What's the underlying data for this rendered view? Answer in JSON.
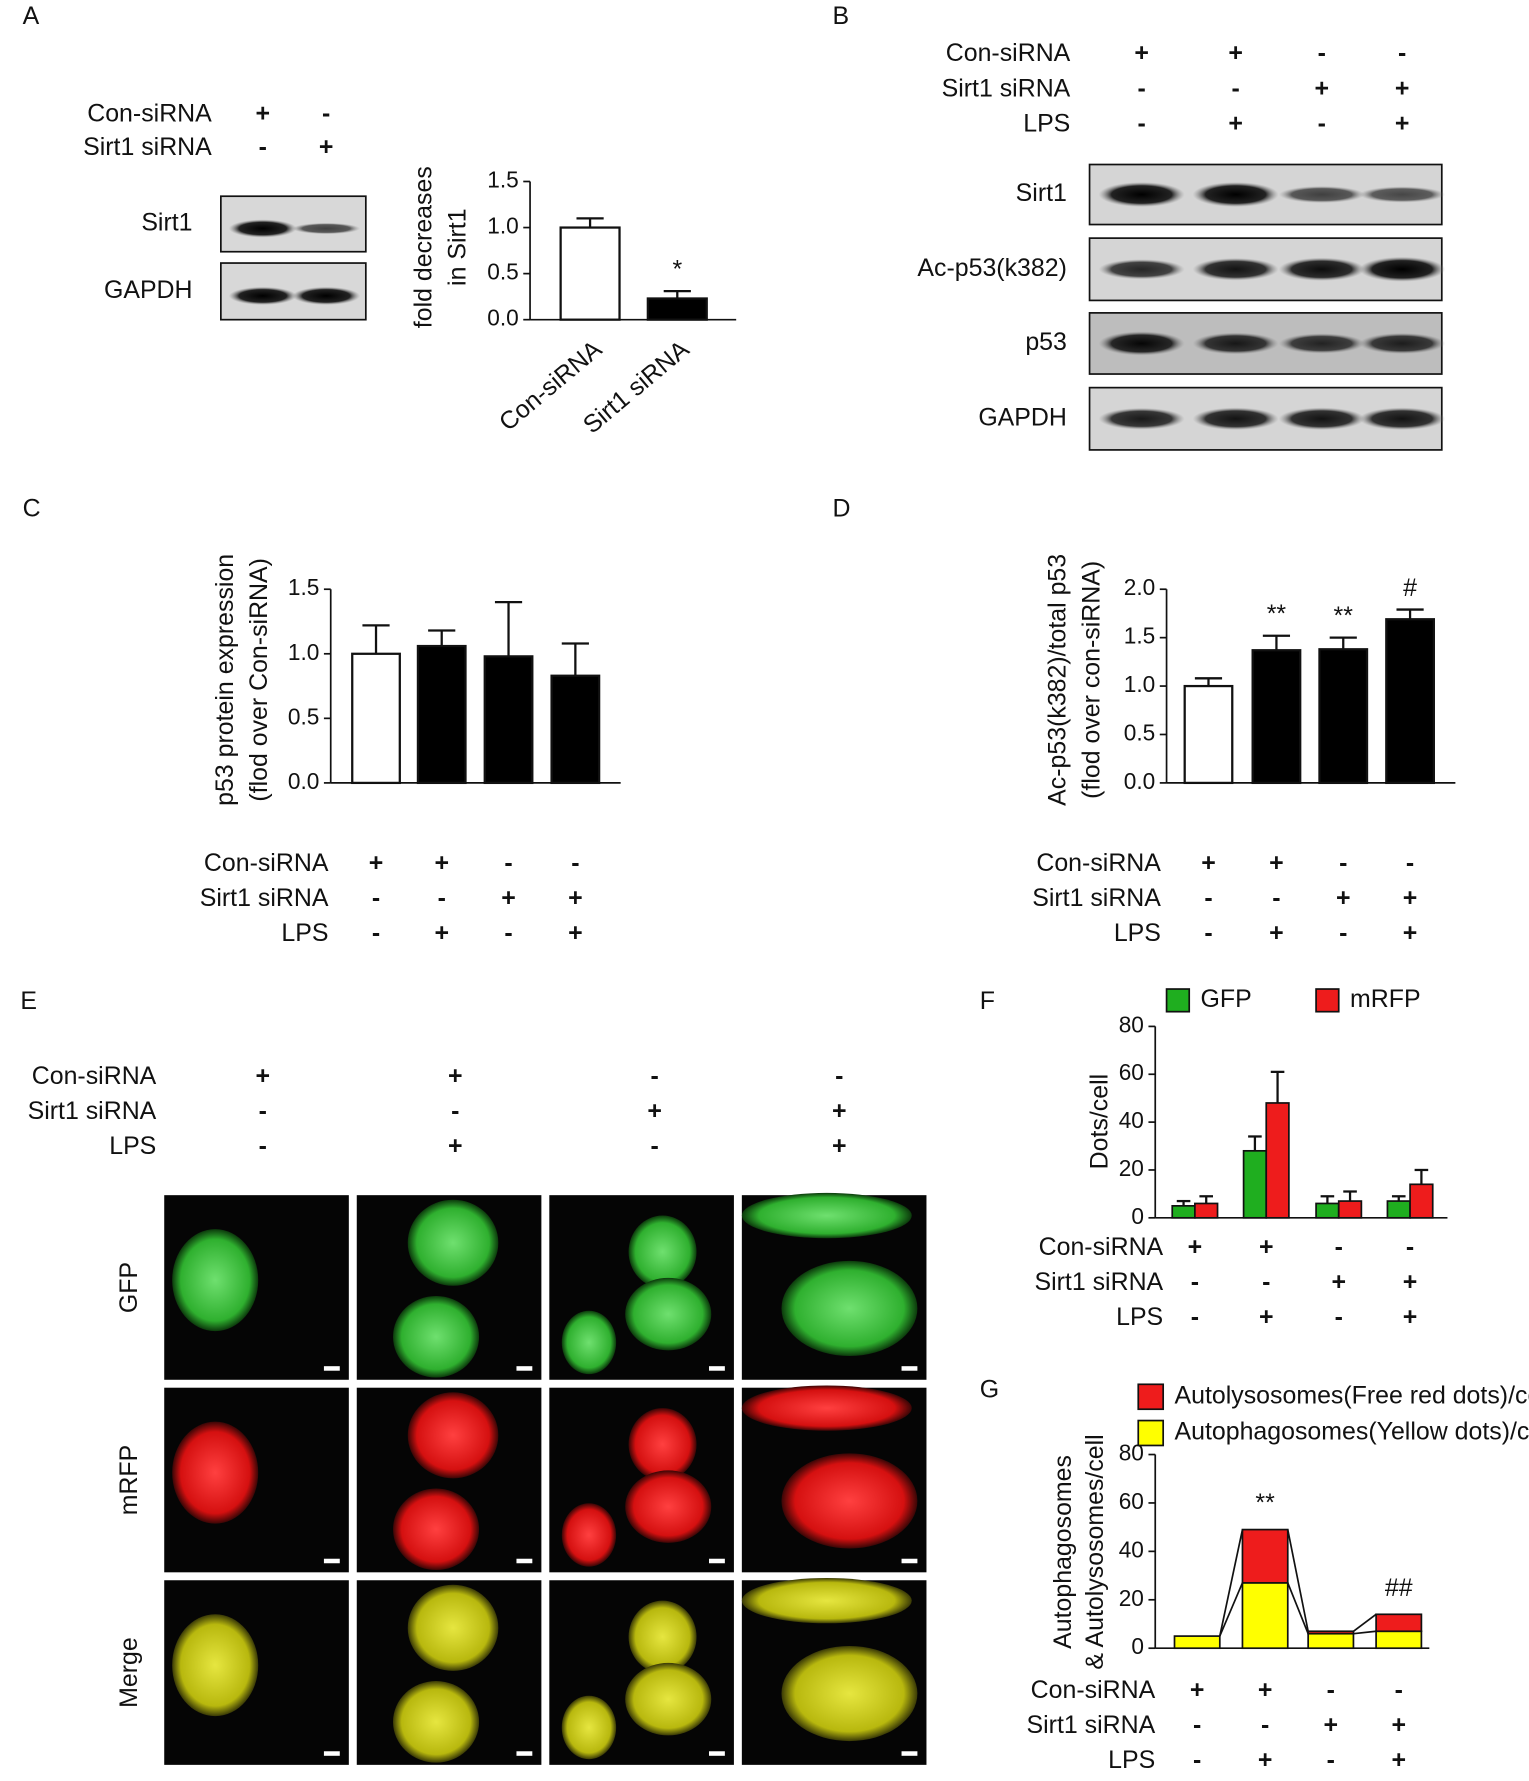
{
  "panel_labels": [
    "A",
    "B",
    "C",
    "D",
    "E",
    "F",
    "G"
  ],
  "blots": [
    {
      "conditions": [
        {
          "label": "Con-siRNA",
          "marks": [
            "+",
            "-"
          ]
        },
        {
          "label": "Sirt1 siRNA",
          "marks": [
            "-",
            "+"
          ]
        }
      ],
      "bands": [
        "Sirt1",
        "GAPDH"
      ]
    },
    {
      "conditions": [
        {
          "label": "Con-siRNA",
          "marks": [
            "+",
            "+",
            "-",
            "-"
          ]
        },
        {
          "label": "Sirt1 siRNA",
          "marks": [
            "-",
            "-",
            "+",
            "+"
          ]
        },
        {
          "label": "LPS",
          "marks": [
            "-",
            "+",
            "-",
            "+"
          ]
        }
      ],
      "bands": [
        "Sirt1",
        "Ac-p53(k382)",
        "p53",
        "GAPDH"
      ]
    }
  ],
  "micrographs": {
    "conditions": [
      {
        "label": "Con-siRNA",
        "marks": [
          "+",
          "+",
          "-",
          "-"
        ]
      },
      {
        "label": "Sirt1 siRNA",
        "marks": [
          "-",
          "-",
          "+",
          "+"
        ]
      },
      {
        "label": "LPS",
        "marks": [
          "-",
          "+",
          "-",
          "+"
        ]
      }
    ],
    "rows": [
      "GFP",
      "mRFP",
      "Merge"
    ]
  },
  "chart_data": [
    {
      "type": "bar",
      "y_label": [
        "fold decreases",
        "in Sirt1"
      ],
      "categories": [
        "Con-siRNA",
        "Sirt1 siRNA"
      ],
      "values": [
        1.0,
        0.23
      ],
      "errors": [
        0.1,
        0.08
      ],
      "colors": [
        "#ffffff",
        "#000000"
      ],
      "annotations": [
        null,
        "*"
      ],
      "ylim": [
        0,
        1.5
      ],
      "yticks": [
        {
          "value": 0,
          "label": "0.0"
        },
        {
          "value": 0.5,
          "label": "0.5"
        },
        {
          "value": 1,
          "label": "1.0"
        },
        {
          "value": 1.5,
          "label": "1.5"
        }
      ]
    },
    {
      "type": "bar",
      "y_label": [
        "p53 protein expression",
        "(flod over Con-siRNA)"
      ],
      "values": [
        1.0,
        1.06,
        0.98,
        0.83
      ],
      "errors": [
        0.22,
        0.12,
        0.42,
        0.25
      ],
      "colors": [
        "#ffffff",
        "#000000",
        "#000000",
        "#000000"
      ],
      "ylim": [
        0,
        1.5
      ],
      "yticks": [
        {
          "value": 0,
          "label": "0.0"
        },
        {
          "value": 0.5,
          "label": "0.5"
        },
        {
          "value": 1,
          "label": "1.0"
        },
        {
          "value": 1.5,
          "label": "1.5"
        }
      ],
      "conditions": [
        {
          "label": "Con-siRNA",
          "marks": [
            "+",
            "+",
            "-",
            "-"
          ]
        },
        {
          "label": "Sirt1 siRNA",
          "marks": [
            "-",
            "-",
            "+",
            "+"
          ]
        },
        {
          "label": "LPS",
          "marks": [
            "-",
            "+",
            "-",
            "+"
          ]
        }
      ]
    },
    {
      "type": "bar",
      "y_label": [
        "Ac-p53(k382)/total p53",
        "(flod over con-siRNA)"
      ],
      "values": [
        1.0,
        1.37,
        1.38,
        1.69
      ],
      "errors": [
        0.08,
        0.15,
        0.12,
        0.1
      ],
      "colors": [
        "#ffffff",
        "#000000",
        "#000000",
        "#000000"
      ],
      "annotations": [
        null,
        "**",
        "**",
        "#"
      ],
      "ylim": [
        0,
        2
      ],
      "yticks": [
        {
          "value": 0,
          "label": "0.0"
        },
        {
          "value": 0.5,
          "label": "0.5"
        },
        {
          "value": 1,
          "label": "1.0"
        },
        {
          "value": 1.5,
          "label": "1.5"
        },
        {
          "value": 2,
          "label": "2.0"
        }
      ],
      "conditions": [
        {
          "label": "Con-siRNA",
          "marks": [
            "+",
            "+",
            "-",
            "-"
          ]
        },
        {
          "label": "Sirt1 siRNA",
          "marks": [
            "-",
            "-",
            "+",
            "+"
          ]
        },
        {
          "label": "LPS",
          "marks": [
            "-",
            "+",
            "-",
            "+"
          ]
        }
      ]
    },
    {
      "type": "grouped_bar",
      "y_label": "Dots/cell",
      "series": [
        {
          "name": "GFP",
          "color": "#1fae1f",
          "values": [
            5,
            28,
            6,
            7
          ],
          "errors": [
            2,
            6,
            3,
            2
          ]
        },
        {
          "name": "mRFP",
          "color": "#ee1c1c",
          "values": [
            6,
            48,
            7,
            14
          ],
          "errors": [
            3,
            13,
            4,
            6
          ]
        }
      ],
      "ylim": [
        0,
        80
      ],
      "yticks": [
        0,
        20,
        40,
        60,
        80
      ],
      "conditions": [
        {
          "label": "Con-siRNA",
          "marks": [
            "+",
            "+",
            "-",
            "-"
          ]
        },
        {
          "label": "Sirt1 siRNA",
          "marks": [
            "-",
            "-",
            "+",
            "+"
          ]
        },
        {
          "label": "LPS",
          "marks": [
            "-",
            "+",
            "-",
            "+"
          ]
        }
      ]
    },
    {
      "type": "stacked_bar",
      "y_label": [
        "Autophagosomes",
        "& Autolysosomes/cell"
      ],
      "series": [
        {
          "name": "Autolysosomes(Free red dots)/cell",
          "color": "#ee1c1c",
          "values": [
            0,
            22,
            1,
            7
          ]
        },
        {
          "name": "Autophagosomes(Yellow dots)/cell",
          "color": "#ffff00",
          "values": [
            5,
            27,
            6,
            7
          ]
        }
      ],
      "annotations": [
        null,
        "**",
        null,
        "##"
      ],
      "ylim": [
        0,
        80
      ],
      "yticks": [
        0,
        20,
        40,
        60,
        80
      ],
      "conditions": [
        {
          "label": "Con-siRNA",
          "marks": [
            "+",
            "+",
            "-",
            "-"
          ]
        },
        {
          "label": "Sirt1 siRNA",
          "marks": [
            "-",
            "-",
            "+",
            "+"
          ]
        },
        {
          "label": "LPS",
          "marks": [
            "-",
            "+",
            "-",
            "+"
          ]
        }
      ]
    }
  ]
}
